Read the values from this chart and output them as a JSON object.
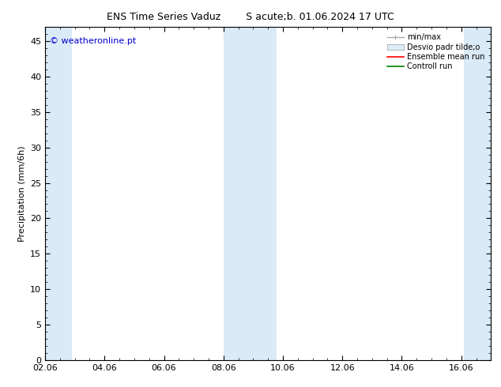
{
  "title_left": "ENS Time Series Vaduz",
  "title_right": "S acute;b. 01.06.2024 17 UTC",
  "ylabel": "Precipitation (mm/6h)",
  "watermark": "© weatheronline.pt",
  "ylim": [
    0,
    47
  ],
  "xlim": [
    0,
    15
  ],
  "xtick_labels": [
    "02.06",
    "04.06",
    "06.06",
    "08.06",
    "10.06",
    "12.06",
    "14.06",
    "16.06"
  ],
  "xtick_positions": [
    0,
    2,
    4,
    6,
    8,
    10,
    12,
    14
  ],
  "ytick_positions": [
    0,
    5,
    10,
    15,
    20,
    25,
    30,
    35,
    40,
    45
  ],
  "shaded_bands": [
    {
      "x_start": 0.0,
      "x_end": 0.9,
      "color": "#daeaf7"
    },
    {
      "x_start": 6.0,
      "x_end": 7.8,
      "color": "#daeaf7"
    },
    {
      "x_start": 14.1,
      "x_end": 15.0,
      "color": "#daeaf7"
    }
  ],
  "background_color": "#ffffff",
  "plot_bg_color": "#ffffff",
  "watermark_color": "#0000cc",
  "title_fontsize": 9,
  "tick_fontsize": 8,
  "ylabel_fontsize": 8,
  "legend_fontsize": 7,
  "watermark_fontsize": 8
}
